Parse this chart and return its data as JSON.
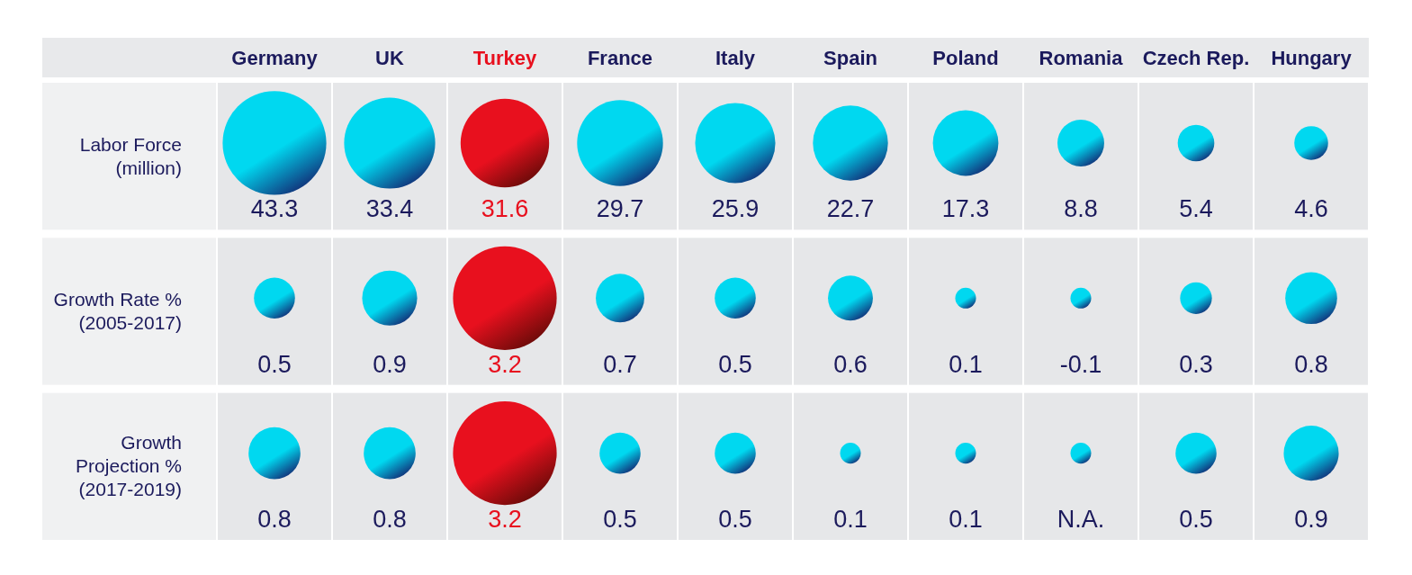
{
  "chart_data": {
    "type": "heatmap",
    "categories": [
      "Germany",
      "UK",
      "Turkey",
      "France",
      "Italy",
      "Spain",
      "Poland",
      "Romania",
      "Czech Rep.",
      "Hungary"
    ],
    "y_categories": [
      "Labor Force\n(million)",
      "Growth Rate %\n(2005-2017)",
      "Growth\nProjection %\n(2017-2019)"
    ],
    "colors": [
      "#00d8f0",
      "#00d8f0",
      "#e8101e",
      "#00d8f0",
      "#00d8f0",
      "#00d8f0",
      "#00d8f0",
      "#00d8f0",
      "#00d8f0",
      "#00d8f0"
    ],
    "cells": [
      [
        43.3,
        33.4,
        31.6,
        29.7,
        25.9,
        22.7,
        17.3,
        8.8,
        5.4,
        4.6
      ],
      [
        0.5,
        0.9,
        3.2,
        0.7,
        0.5,
        0.6,
        0.1,
        -0.1,
        0.3,
        0.8
      ],
      [
        0.8,
        0.8,
        3.2,
        0.5,
        0.5,
        0.1,
        0.1,
        null,
        0.5,
        0.9
      ]
    ],
    "cell_labels": [
      [
        "43.3",
        "33.4",
        "31.6",
        "29.7",
        "25.9",
        "22.7",
        "17.3",
        "8.8",
        "5.4",
        "4.6"
      ],
      [
        "0.5",
        "0.9",
        "3.2",
        "0.7",
        "0.5",
        "0.6",
        "0.1",
        "-0.1",
        "0.3",
        "0.8"
      ],
      [
        "0.8",
        "0.8",
        "3.2",
        "0.5",
        "0.5",
        "0.1",
        "0.1",
        "N.A.",
        "0.5",
        "0.9"
      ]
    ]
  }
}
